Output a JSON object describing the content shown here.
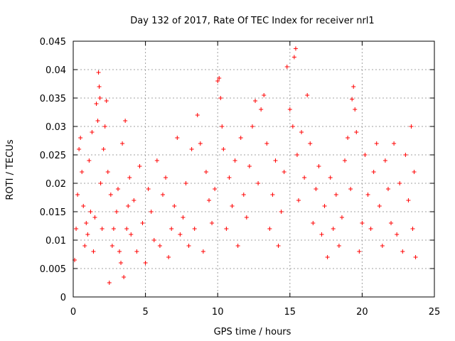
{
  "chart_data": {
    "type": "scatter",
    "title": "Day 132 of 2017, Rate Of TEC Index for receiver nrl1",
    "xlabel": "GPS time / hours",
    "ylabel": "ROTI / TECUs",
    "xlim": [
      0,
      25
    ],
    "ylim": [
      0,
      0.045
    ],
    "xticks": [
      {
        "value": 0,
        "label": "0"
      },
      {
        "value": 5,
        "label": "5"
      },
      {
        "value": 10,
        "label": "10"
      },
      {
        "value": 15,
        "label": "15"
      },
      {
        "value": 20,
        "label": "20"
      },
      {
        "value": 25,
        "label": "25"
      }
    ],
    "yticks": [
      {
        "value": 0,
        "label": "0"
      },
      {
        "value": 0.005,
        "label": "0.005"
      },
      {
        "value": 0.01,
        "label": "0.01"
      },
      {
        "value": 0.015,
        "label": "0.015"
      },
      {
        "value": 0.02,
        "label": "0.02"
      },
      {
        "value": 0.025,
        "label": "0.025"
      },
      {
        "value": 0.03,
        "label": "0.03"
      },
      {
        "value": 0.035,
        "label": "0.035"
      },
      {
        "value": 0.04,
        "label": "0.04"
      },
      {
        "value": 0.045,
        "label": "0.045"
      }
    ],
    "grid": true,
    "marker": "+",
    "series": [
      {
        "name": "ROTI",
        "color": "#ff0000",
        "points": [
          [
            0.1,
            0.0065
          ],
          [
            0.2,
            0.012
          ],
          [
            0.3,
            0.018
          ],
          [
            0.4,
            0.026
          ],
          [
            0.5,
            0.028
          ],
          [
            0.6,
            0.022
          ],
          [
            0.7,
            0.016
          ],
          [
            0.8,
            0.009
          ],
          [
            0.9,
            0.013
          ],
          [
            1.0,
            0.011
          ],
          [
            1.1,
            0.024
          ],
          [
            1.2,
            0.015
          ],
          [
            1.3,
            0.029
          ],
          [
            1.4,
            0.008
          ],
          [
            1.5,
            0.014
          ],
          [
            1.6,
            0.034
          ],
          [
            1.7,
            0.031
          ],
          [
            1.75,
            0.0395
          ],
          [
            1.8,
            0.037
          ],
          [
            1.85,
            0.035
          ],
          [
            1.9,
            0.02
          ],
          [
            2.0,
            0.012
          ],
          [
            2.1,
            0.026
          ],
          [
            2.2,
            0.03
          ],
          [
            2.3,
            0.0345
          ],
          [
            2.4,
            0.022
          ],
          [
            2.5,
            0.0025
          ],
          [
            2.6,
            0.018
          ],
          [
            2.7,
            0.009
          ],
          [
            2.8,
            0.012
          ],
          [
            3.0,
            0.015
          ],
          [
            3.1,
            0.019
          ],
          [
            3.2,
            0.008
          ],
          [
            3.3,
            0.006
          ],
          [
            3.4,
            0.027
          ],
          [
            3.5,
            0.0035
          ],
          [
            3.6,
            0.031
          ],
          [
            3.7,
            0.012
          ],
          [
            3.8,
            0.016
          ],
          [
            3.9,
            0.021
          ],
          [
            4.0,
            0.011
          ],
          [
            4.2,
            0.017
          ],
          [
            4.4,
            0.008
          ],
          [
            4.6,
            0.023
          ],
          [
            4.8,
            0.013
          ],
          [
            5.0,
            0.006
          ],
          [
            5.2,
            0.019
          ],
          [
            5.4,
            0.015
          ],
          [
            5.6,
            0.01
          ],
          [
            5.8,
            0.024
          ],
          [
            6.0,
            0.009
          ],
          [
            6.2,
            0.018
          ],
          [
            6.4,
            0.021
          ],
          [
            6.6,
            0.007
          ],
          [
            6.8,
            0.012
          ],
          [
            7.0,
            0.016
          ],
          [
            7.2,
            0.028
          ],
          [
            7.4,
            0.011
          ],
          [
            7.6,
            0.014
          ],
          [
            7.8,
            0.02
          ],
          [
            8.0,
            0.009
          ],
          [
            8.2,
            0.026
          ],
          [
            8.4,
            0.012
          ],
          [
            8.6,
            0.032
          ],
          [
            8.8,
            0.027
          ],
          [
            9.0,
            0.008
          ],
          [
            9.2,
            0.022
          ],
          [
            9.4,
            0.017
          ],
          [
            9.6,
            0.013
          ],
          [
            9.8,
            0.019
          ],
          [
            10.0,
            0.038
          ],
          [
            10.1,
            0.0385
          ],
          [
            10.2,
            0.035
          ],
          [
            10.3,
            0.03
          ],
          [
            10.4,
            0.026
          ],
          [
            10.6,
            0.012
          ],
          [
            10.8,
            0.021
          ],
          [
            11.0,
            0.016
          ],
          [
            11.2,
            0.024
          ],
          [
            11.4,
            0.009
          ],
          [
            11.6,
            0.028
          ],
          [
            11.8,
            0.018
          ],
          [
            12.0,
            0.014
          ],
          [
            12.2,
            0.023
          ],
          [
            12.4,
            0.03
          ],
          [
            12.6,
            0.0345
          ],
          [
            12.8,
            0.02
          ],
          [
            13.0,
            0.033
          ],
          [
            13.2,
            0.0355
          ],
          [
            13.4,
            0.027
          ],
          [
            13.6,
            0.012
          ],
          [
            13.8,
            0.018
          ],
          [
            14.0,
            0.024
          ],
          [
            14.2,
            0.009
          ],
          [
            14.4,
            0.015
          ],
          [
            14.6,
            0.022
          ],
          [
            14.8,
            0.0405
          ],
          [
            15.0,
            0.033
          ],
          [
            15.2,
            0.03
          ],
          [
            15.3,
            0.0422
          ],
          [
            15.4,
            0.0437
          ],
          [
            15.5,
            0.025
          ],
          [
            15.6,
            0.017
          ],
          [
            15.8,
            0.029
          ],
          [
            16.0,
            0.021
          ],
          [
            16.2,
            0.0355
          ],
          [
            16.4,
            0.027
          ],
          [
            16.6,
            0.013
          ],
          [
            16.8,
            0.019
          ],
          [
            17.0,
            0.023
          ],
          [
            17.2,
            0.011
          ],
          [
            17.4,
            0.016
          ],
          [
            17.6,
            0.007
          ],
          [
            17.8,
            0.021
          ],
          [
            18.0,
            0.012
          ],
          [
            18.2,
            0.018
          ],
          [
            18.4,
            0.009
          ],
          [
            18.6,
            0.014
          ],
          [
            18.8,
            0.024
          ],
          [
            19.0,
            0.028
          ],
          [
            19.2,
            0.019
          ],
          [
            19.3,
            0.0348
          ],
          [
            19.4,
            0.037
          ],
          [
            19.5,
            0.033
          ],
          [
            19.6,
            0.029
          ],
          [
            19.8,
            0.008
          ],
          [
            20.0,
            0.013
          ],
          [
            20.2,
            0.025
          ],
          [
            20.4,
            0.018
          ],
          [
            20.6,
            0.012
          ],
          [
            20.8,
            0.022
          ],
          [
            21.0,
            0.027
          ],
          [
            21.2,
            0.016
          ],
          [
            21.4,
            0.009
          ],
          [
            21.6,
            0.024
          ],
          [
            21.8,
            0.019
          ],
          [
            22.0,
            0.013
          ],
          [
            22.2,
            0.027
          ],
          [
            22.4,
            0.011
          ],
          [
            22.6,
            0.02
          ],
          [
            22.8,
            0.008
          ],
          [
            23.0,
            0.025
          ],
          [
            23.2,
            0.017
          ],
          [
            23.4,
            0.03
          ],
          [
            23.5,
            0.012
          ],
          [
            23.6,
            0.022
          ],
          [
            23.7,
            0.007
          ]
        ]
      }
    ]
  }
}
